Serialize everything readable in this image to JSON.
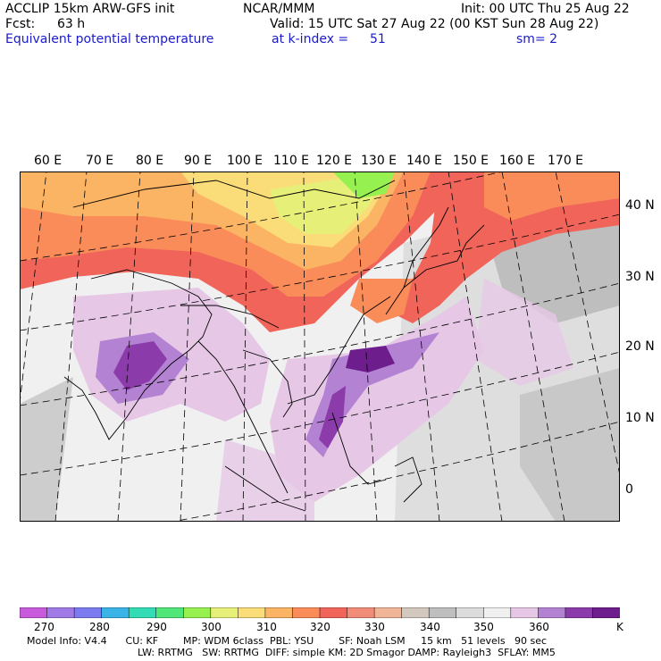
{
  "header": {
    "model": "ACCLIP 15km ARW-GFS init",
    "org": "NCAR/MMM",
    "init": "Init: 00 UTC Thu 25 Aug 22",
    "fcst_label": "Fcst:",
    "fcst_value": "63 h",
    "valid": "Valid: 15 UTC Sat 27 Aug 22 (00 KST Sun 28 Aug 22)",
    "field": "Equivalent potential temperature",
    "level": "at k-index =",
    "level_value": "51",
    "smooth": "sm= 2"
  },
  "map": {
    "lon_labels": [
      "60 E",
      "70 E",
      "80 E",
      "90 E",
      "100 E",
      "110 E",
      "120 E",
      "130 E",
      "140 E",
      "150 E",
      "160 E",
      "170 E"
    ],
    "lat_labels": [
      "40 N",
      "30 N",
      "20 N",
      "10 N",
      "0"
    ]
  },
  "colorbar": {
    "labels": [
      "270",
      "280",
      "290",
      "300",
      "310",
      "320",
      "330",
      "340",
      "350",
      "360",
      "K"
    ],
    "colors": [
      "#c85adc",
      "#a07ae6",
      "#7c7cf0",
      "#3ab4e6",
      "#32dcb4",
      "#50e678",
      "#96f050",
      "#e6f078",
      "#fadc78",
      "#fab464",
      "#fa8c5a",
      "#f0645a",
      "#f08c78",
      "#f0b496",
      "#d2c8be",
      "#bebebe",
      "#dcdcdc",
      "#f0f0f0",
      "#e6c8e6",
      "#b482d2",
      "#8c3caa",
      "#6e1e8c"
    ]
  },
  "footer": {
    "line1": "Model Info: V4.4      CU: KF        MP: WDM 6class  PBL: YSU        SF: Noah LSM     15 km   51 levels   90 sec",
    "line2": "LW: RRTMG   SW: RRTMG  DIFF: simple KM: 2D Smagor DAMP: Rayleigh3  SFLAY: MM5"
  }
}
